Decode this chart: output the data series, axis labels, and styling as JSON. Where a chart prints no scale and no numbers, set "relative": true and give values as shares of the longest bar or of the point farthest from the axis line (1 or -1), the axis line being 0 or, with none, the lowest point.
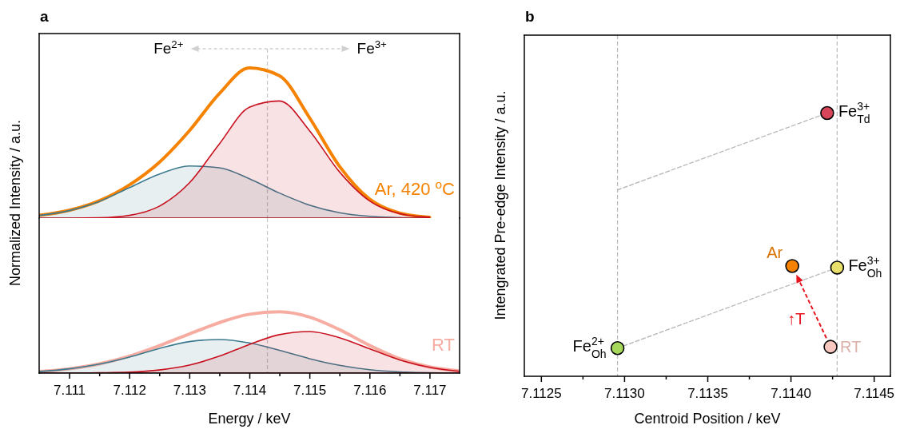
{
  "chart_data": [
    {
      "type": "line",
      "title": "a",
      "ylabel": "Normalized Intensity / a.u.",
      "relative": true,
      "legend": false,
      "grid": false,
      "tick_labels": false,
      "x": [
        7.1105,
        7.111,
        7.1115,
        7.112,
        7.1125,
        7.113,
        7.1135,
        7.114,
        7.1145,
        7.115,
        7.1155,
        7.116,
        7.1165,
        7.117
      ],
      "xlim": [
        7.1105,
        7.1175
      ],
      "series": [
        {
          "name": "Ar, 420 $^{o}$C",
          "color": "#f58200",
          "values": [
            0.018,
            0.052,
            0.115,
            0.22,
            0.371,
            0.581,
            0.829,
            1.0,
            0.948,
            0.669,
            0.345,
            0.127,
            0.034,
            0.006
          ]
        },
        {
          "type": "area",
          "color": "#3d7a8f",
          "values": [
            0.018,
            0.05,
            0.111,
            0.202,
            0.292,
            0.347,
            0.335,
            0.262,
            0.167,
            0.087,
            0.036,
            0.012,
            0.004,
            0.0
          ]
        },
        {
          "type": "area",
          "color": "#c8101e",
          "values": [
            0.0,
            0.0,
            0.002,
            0.018,
            0.079,
            0.234,
            0.494,
            0.738,
            0.78,
            0.583,
            0.308,
            0.115,
            0.03,
            0.006
          ]
        }
      ],
      "ref_lines": [
        {
          "axis": "x",
          "value": 7.1143,
          "color": "#c8c8c8",
          "line_style": "dashed"
        }
      ],
      "annotations": [
        "Fe$^{2+}$",
        "Fe$^{3+}$"
      ]
    },
    {
      "type": "line",
      "xlabel": "Energy / keV",
      "relative": true,
      "legend": false,
      "grid": false,
      "tick_labels": "x",
      "x": [
        7.1105,
        7.111,
        7.1115,
        7.112,
        7.1125,
        7.113,
        7.1135,
        7.114,
        7.1145,
        7.115,
        7.1155,
        7.116,
        7.1165,
        7.117,
        7.1175
      ],
      "xlim": [
        7.1105,
        7.1175
      ],
      "xticks": [
        7.111,
        {
          "value": 7.1115,
          "label": null
        },
        7.112,
        {
          "value": 7.1125,
          "label": null
        },
        7.113,
        {
          "value": 7.1135,
          "label": null
        },
        7.114,
        {
          "value": 7.1145,
          "label": null
        },
        7.115,
        {
          "value": 7.1155,
          "label": null
        },
        7.116,
        {
          "value": 7.1165,
          "label": null
        },
        7.117
      ],
      "series": [
        {
          "name": "RT",
          "color": "#f7aca2",
          "values": [
            0.025,
            0.07,
            0.151,
            0.276,
            0.447,
            0.638,
            0.824,
            0.96,
            1.0,
            0.915,
            0.709,
            0.452,
            0.236,
            0.101,
            0.035
          ]
        },
        {
          "type": "area",
          "color": "#3d7a8f",
          "values": [
            0.025,
            0.07,
            0.146,
            0.261,
            0.402,
            0.513,
            0.548,
            0.492,
            0.372,
            0.236,
            0.126,
            0.055,
            0.02,
            0.005,
            0.0
          ]
        },
        {
          "type": "area",
          "color": "#c8101e",
          "values": [
            0.0,
            0.0,
            0.005,
            0.015,
            0.05,
            0.131,
            0.276,
            0.467,
            0.628,
            0.678,
            0.578,
            0.397,
            0.216,
            0.095,
            0.03
          ]
        }
      ],
      "ref_lines": [
        {
          "axis": "x",
          "value": 7.1143,
          "color": "#c8c8c8",
          "line_style": "dashed"
        }
      ]
    },
    {
      "type": "scatter",
      "title": "b",
      "xlabel": "Centroid Position / keV",
      "ylabel": "Intengrated Pre-edge Intensity / a.u.",
      "relative": true,
      "legend": false,
      "grid": false,
      "tick_labels": "x",
      "marker": "circle",
      "xlim": [
        7.1124,
        7.1146
      ],
      "xticks": [
        7.1125,
        {
          "value": 7.11275,
          "label": null
        },
        {
          "value": 7.113,
          "label": "7.1130"
        },
        {
          "value": 7.11325,
          "label": null
        },
        7.1135,
        {
          "value": 7.11375,
          "label": null
        },
        {
          "value": 7.114,
          "label": "7.1140"
        },
        {
          "value": 7.11425,
          "label": null
        },
        7.1145
      ],
      "series": [
        {
          "type": "line",
          "color": "#bbbbbb",
          "line_style": "dashed",
          "marker": "none",
          "x": [
            7.11296,
            7.11428
          ],
          "values": [
            0.107,
            0.413
          ]
        },
        {
          "type": "line",
          "color": "#bbbbbb",
          "line_style": "dashed",
          "marker": "none",
          "x": [
            7.11296,
            7.11422
          ],
          "values": [
            0.708,
            1.0
          ]
        },
        {
          "type": "scatter",
          "color": "#a6d95b",
          "x": [
            7.11296
          ],
          "values": [
            0.107
          ]
        },
        {
          "type": "scatter",
          "name": "Ar",
          "color": "#f58200",
          "x": [
            7.11401
          ],
          "values": [
            0.419
          ]
        },
        {
          "type": "scatter",
          "color": "#e8e06a",
          "x": [
            7.11428
          ],
          "values": [
            0.413
          ]
        },
        {
          "type": "scatter",
          "color": "#d6455a",
          "x": [
            7.11422
          ],
          "values": [
            1.0
          ]
        },
        {
          "type": "scatter",
          "name": "RT",
          "color": "#f8c8c0",
          "x": [
            7.11424
          ],
          "values": [
            0.112
          ]
        }
      ],
      "ref_lines": [
        {
          "axis": "x",
          "value": 7.11296,
          "color": "#bbbbbb",
          "line_style": "dashed"
        },
        {
          "axis": "x",
          "value": 7.11428,
          "color": "#bbbbbb",
          "line_style": "dashed"
        }
      ],
      "annotations": [
        {
          "text": "Fe$^{2+}$$_{Oh}$",
          "x": 7.11296,
          "y": 0.107
        },
        {
          "text": "Fe$^{3+}$$_{Oh}$",
          "x": 7.11428,
          "y": 0.413
        },
        {
          "text": "Fe$^{3+}$$_{Td}$",
          "x": 7.11422,
          "y": 1.0
        },
        "↑T"
      ]
    }
  ]
}
